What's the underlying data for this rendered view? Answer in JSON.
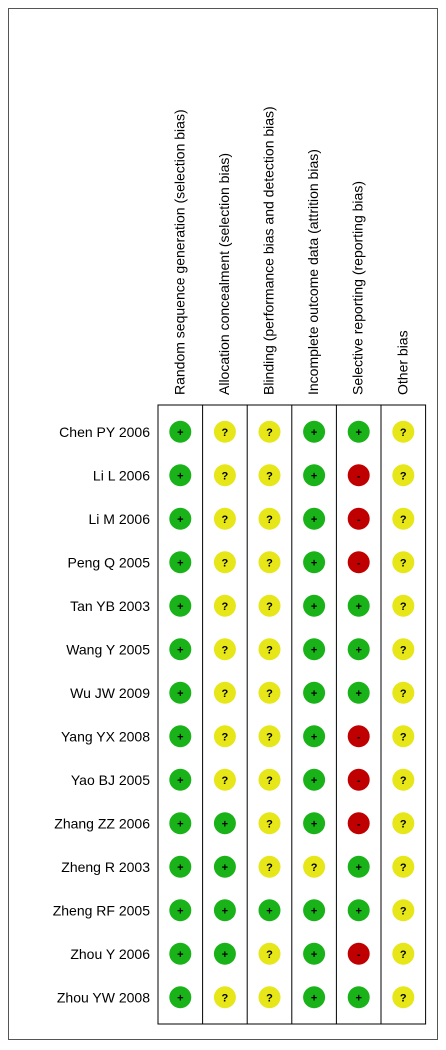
{
  "columns": [
    "Random sequence generation (selection bias)",
    "Allocation concealment (selection bias)",
    "Blinding (performance bias and detection bias)",
    "Incomplete outcome data (attrition bias)",
    "Selective reporting (reporting bias)",
    "Other bias"
  ],
  "colors": {
    "+": "#19b219",
    "?": "#e6e619",
    "-": "#c00000"
  },
  "rows": [
    {
      "study": "Chen PY 2006",
      "ratings": [
        "+",
        "?",
        "?",
        "+",
        "+",
        "?"
      ]
    },
    {
      "study": "Li L 2006",
      "ratings": [
        "+",
        "?",
        "?",
        "+",
        "-",
        "?"
      ]
    },
    {
      "study": "Li M 2006",
      "ratings": [
        "+",
        "?",
        "?",
        "+",
        "-",
        "?"
      ]
    },
    {
      "study": "Peng Q 2005",
      "ratings": [
        "+",
        "?",
        "?",
        "+",
        "-",
        "?"
      ]
    },
    {
      "study": "Tan YB 2003",
      "ratings": [
        "+",
        "?",
        "?",
        "+",
        "+",
        "?"
      ]
    },
    {
      "study": "Wang Y 2005",
      "ratings": [
        "+",
        "?",
        "?",
        "+",
        "+",
        "?"
      ]
    },
    {
      "study": "Wu JW 2009",
      "ratings": [
        "+",
        "?",
        "?",
        "+",
        "+",
        "?"
      ]
    },
    {
      "study": "Yang YX 2008",
      "ratings": [
        "+",
        "?",
        "?",
        "+",
        "-",
        "?"
      ]
    },
    {
      "study": "Yao BJ 2005",
      "ratings": [
        "+",
        "?",
        "?",
        "+",
        "-",
        "?"
      ]
    },
    {
      "study": "Zhang ZZ 2006",
      "ratings": [
        "+",
        "+",
        "?",
        "+",
        "-",
        "?"
      ]
    },
    {
      "study": "Zheng R 2003",
      "ratings": [
        "+",
        "+",
        "?",
        "?",
        "+",
        "?"
      ]
    },
    {
      "study": "Zheng RF 2005",
      "ratings": [
        "+",
        "+",
        "+",
        "+",
        "+",
        "?"
      ]
    },
    {
      "study": "Zhou Y 2006",
      "ratings": [
        "+",
        "+",
        "?",
        "+",
        "-",
        "?"
      ]
    },
    {
      "study": "Zhou YW 2008",
      "ratings": [
        "+",
        "?",
        "?",
        "+",
        "+",
        "?"
      ]
    }
  ]
}
